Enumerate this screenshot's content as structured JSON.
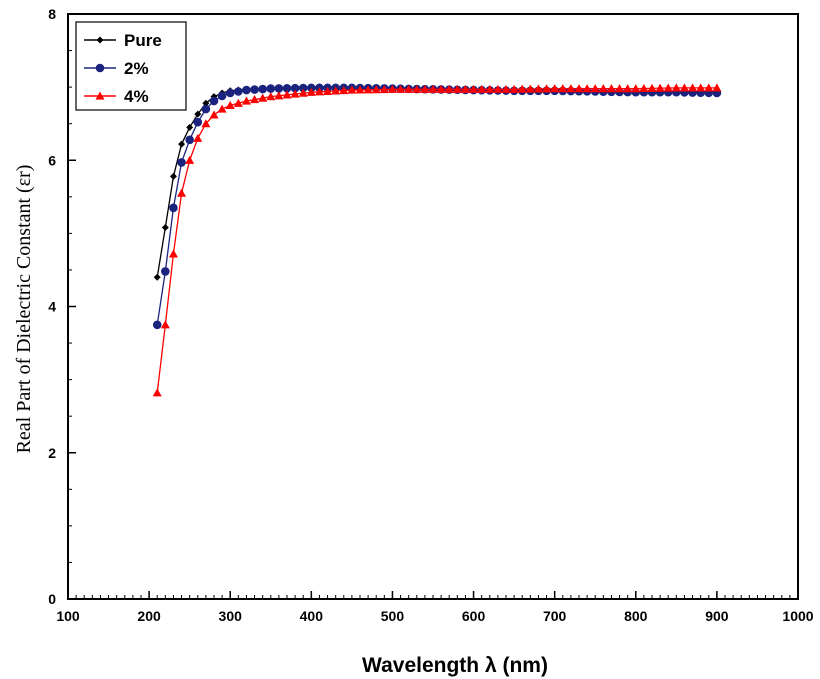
{
  "chart_data": {
    "type": "line",
    "xlabel": "Wavelength λ (nm)",
    "ylabel": "Real Part of Dielectric Constant (εr)",
    "xlim": [
      100,
      1000
    ],
    "ylim": [
      0,
      8
    ],
    "xticks": [
      100,
      200,
      300,
      400,
      500,
      600,
      700,
      800,
      900,
      1000
    ],
    "yticks": [
      0,
      2,
      4,
      6,
      8
    ],
    "x_minor_step": 10,
    "y_minor_step": 0.5,
    "grid": false,
    "legend_position": "top-left",
    "series": [
      {
        "name": "Pure",
        "color": "#000000",
        "marker": "diamond",
        "points": [
          [
            210,
            4.4
          ],
          [
            220,
            5.08
          ],
          [
            230,
            5.78
          ],
          [
            240,
            6.22
          ],
          [
            250,
            6.45
          ],
          [
            260,
            6.63
          ],
          [
            270,
            6.78
          ],
          [
            280,
            6.87
          ],
          [
            290,
            6.92
          ],
          [
            300,
            6.95
          ],
          [
            320,
            6.97
          ],
          [
            350,
            6.98
          ],
          [
            400,
            6.98
          ],
          [
            450,
            6.98
          ],
          [
            500,
            6.97
          ],
          [
            550,
            6.97
          ],
          [
            600,
            6.96
          ],
          [
            650,
            6.96
          ],
          [
            700,
            6.95
          ],
          [
            750,
            6.95
          ],
          [
            800,
            6.94
          ],
          [
            850,
            6.94
          ],
          [
            900,
            6.94
          ]
        ]
      },
      {
        "name": "2%",
        "color": "#1a237e",
        "marker": "circle",
        "points": [
          [
            210,
            3.75
          ],
          [
            220,
            4.48
          ],
          [
            230,
            5.35
          ],
          [
            240,
            5.97
          ],
          [
            250,
            6.28
          ],
          [
            260,
            6.52
          ],
          [
            270,
            6.7
          ],
          [
            280,
            6.81
          ],
          [
            290,
            6.88
          ],
          [
            300,
            6.92
          ],
          [
            320,
            6.96
          ],
          [
            350,
            6.98
          ],
          [
            400,
            6.99
          ],
          [
            450,
            6.99
          ],
          [
            500,
            6.98
          ],
          [
            550,
            6.97
          ],
          [
            600,
            6.96
          ],
          [
            650,
            6.95
          ],
          [
            700,
            6.95
          ],
          [
            750,
            6.94
          ],
          [
            800,
            6.93
          ],
          [
            850,
            6.93
          ],
          [
            900,
            6.92
          ]
        ]
      },
      {
        "name": "4%",
        "color": "#ff0000",
        "marker": "triangle",
        "points": [
          [
            210,
            2.82
          ],
          [
            220,
            3.75
          ],
          [
            230,
            4.72
          ],
          [
            240,
            5.55
          ],
          [
            250,
            6.0
          ],
          [
            260,
            6.3
          ],
          [
            270,
            6.5
          ],
          [
            280,
            6.62
          ],
          [
            290,
            6.7
          ],
          [
            300,
            6.75
          ],
          [
            320,
            6.81
          ],
          [
            350,
            6.87
          ],
          [
            400,
            6.93
          ],
          [
            450,
            6.96
          ],
          [
            500,
            6.97
          ],
          [
            550,
            6.97
          ],
          [
            600,
            6.97
          ],
          [
            650,
            6.97
          ],
          [
            700,
            6.98
          ],
          [
            750,
            6.98
          ],
          [
            800,
            6.98
          ],
          [
            850,
            6.99
          ],
          [
            900,
            6.99
          ]
        ]
      }
    ]
  }
}
